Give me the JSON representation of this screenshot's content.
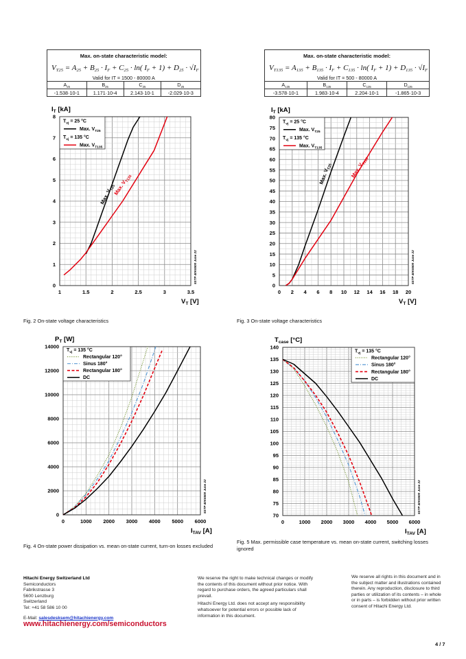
{
  "tables": [
    {
      "title": "Max. on-state characteristic model:",
      "formula": {
        "lhs": "V",
        "lhs_sub": "T25",
        "rhs": "= A",
        "s1": "25",
        "p2": " + B",
        "s2": "25",
        "p3": " · I",
        "s3": "F",
        "p4": " + C",
        "s4": "25",
        "p5": " · ln( I",
        "s5": "F",
        "p6": " + 1) + D",
        "s6": "25",
        "p7": " · √I",
        "s7": "F"
      },
      "valid": "Valid for IT = 1500 - 80000 A",
      "headers": [
        [
          "A",
          "25"
        ],
        [
          "B",
          "25"
        ],
        [
          "C",
          "25"
        ],
        [
          "D",
          "25"
        ]
      ],
      "values": [
        "-1.538·10-1",
        "1.171·10-4",
        "2.143·10-1",
        "-2.029·10-3"
      ]
    },
    {
      "title": "Max. on-state characteristic model:",
      "formula": {
        "lhs": "V",
        "lhs_sub": "T135",
        "rhs": "= A",
        "s1": "135",
        "p2": " + B",
        "s2": "135",
        "p3": " · I",
        "s3": "F",
        "p4": " + C",
        "s4": "135",
        "p5": " · ln( I",
        "s5": "F",
        "p6": " + 1) + D",
        "s6": "135",
        "p7": " · √I",
        "s7": "F"
      },
      "valid": "Valid for IT = 500 - 80000 A",
      "headers": [
        [
          "A",
          "135"
        ],
        [
          "B",
          "135"
        ],
        [
          "C",
          "135"
        ],
        [
          "D",
          "135"
        ]
      ],
      "values": [
        "-3.578·10-1",
        "1.983·10-4",
        "2.204·10-1",
        "-1.865·10-3"
      ]
    }
  ],
  "captions": {
    "fig2": "Fig. 2 On-state voltage characteristics",
    "fig3": "Fig. 3 On-state voltage characteristics",
    "fig4": "Fig. 4 On-state power dissipation vs. mean on-state current, turn-on losses excluded",
    "fig5": "Fig. 5 Max. permissible case temperature vs. mean on-state current, switching losses ignored"
  },
  "chart_data": [
    {
      "type": "line",
      "ylabel": [
        "I",
        "T",
        " [kA]"
      ],
      "xlabel": [
        "V",
        "T",
        " [V]"
      ],
      "xlim": [
        1,
        3.5
      ],
      "ylim": [
        0,
        8
      ],
      "grid": true,
      "legend": "top-left",
      "xticks": [
        "1",
        "1.5",
        "2",
        "2.5",
        "3",
        "3.5"
      ],
      "yticks": [
        "0",
        "1",
        "2",
        "3",
        "4",
        "5",
        "6",
        "7",
        "8"
      ],
      "watermark": "5STP 40K6500 June 22",
      "legend_entries": [
        {
          "label": [
            "T",
            "vj",
            " = 25 °C"
          ]
        },
        {
          "series": 0,
          "label": [
            "Max. V",
            "T25"
          ]
        },
        {
          "label": [
            "T",
            "vj",
            " = 135 °C"
          ]
        },
        {
          "series": 1,
          "label": [
            "Max. V",
            "T135"
          ]
        }
      ],
      "annotations": [
        {
          "series": 0,
          "label": [
            "Max. V",
            "T25"
          ]
        },
        {
          "series": 1,
          "label": [
            "Max. V",
            "T135"
          ]
        }
      ],
      "series": [
        {
          "name": "Max. VT25",
          "color": "#000000",
          "style": "solid",
          "x": [
            1.5,
            1.6,
            1.7,
            1.8,
            1.9,
            2.0,
            2.1,
            2.2,
            2.3,
            2.4,
            2.53
          ],
          "y": [
            1.5,
            2.0,
            2.7,
            3.4,
            4.1,
            4.8,
            5.5,
            6.2,
            6.9,
            7.5,
            8.0
          ]
        },
        {
          "name": "Max. VT135",
          "color": "#e3000f",
          "style": "solid",
          "x": [
            1.08,
            1.2,
            1.3,
            1.4,
            1.5,
            1.6,
            1.8,
            2.0,
            2.2,
            2.4,
            2.6,
            2.8,
            3.05
          ],
          "y": [
            0.5,
            0.75,
            1.0,
            1.25,
            1.55,
            1.9,
            2.6,
            3.3,
            4.0,
            4.8,
            5.6,
            6.4,
            8.0
          ]
        }
      ]
    },
    {
      "type": "line",
      "ylabel": [
        "I",
        "T",
        " [kA]"
      ],
      "xlabel": [
        "V",
        "T",
        " [V]"
      ],
      "xlim": [
        0,
        20
      ],
      "ylim": [
        0,
        80
      ],
      "grid": true,
      "legend": "top-left",
      "xticks": [
        "0",
        "2",
        "4",
        "6",
        "8",
        "10",
        "12",
        "14",
        "16",
        "18",
        "20"
      ],
      "yticks": [
        "0",
        "5",
        "10",
        "15",
        "20",
        "25",
        "30",
        "35",
        "40",
        "45",
        "50",
        "55",
        "60",
        "65",
        "70",
        "75",
        "80"
      ],
      "watermark": "5STP 40K6500 June 22",
      "legend_entries": [
        {
          "label": [
            "T",
            "vj",
            " = 25 °C"
          ]
        },
        {
          "series": 0,
          "label": [
            "Max. V",
            "T25"
          ]
        },
        {
          "label": [
            "T",
            "vj",
            " = 135 °C"
          ]
        },
        {
          "series": 1,
          "label": [
            "Max. V",
            "T135"
          ]
        }
      ],
      "annotations": [
        {
          "series": 0,
          "label": [
            "Max. V",
            "T25"
          ]
        },
        {
          "series": 1,
          "label": [
            "Max. V",
            "T135"
          ]
        }
      ],
      "series": [
        {
          "name": "Max. VT25",
          "color": "#000000",
          "style": "solid",
          "x": [
            1,
            1.5,
            2,
            3,
            4,
            6,
            8,
            10,
            11.1
          ],
          "y": [
            0,
            1,
            3,
            10,
            19,
            36,
            54,
            71,
            80
          ]
        },
        {
          "name": "Max. VT135",
          "color": "#e3000f",
          "style": "solid",
          "x": [
            1,
            1.5,
            2,
            4,
            6,
            8,
            10,
            12,
            14,
            16,
            17.5
          ],
          "y": [
            0,
            1,
            3,
            13,
            22,
            31,
            42,
            53,
            63,
            73,
            80
          ]
        }
      ]
    },
    {
      "type": "line",
      "ylabel": [
        "P",
        "T",
        " [W]"
      ],
      "xlabel": [
        "I",
        "TAV",
        " [A]"
      ],
      "xlim": [
        0,
        6000
      ],
      "ylim": [
        0,
        14000
      ],
      "grid": true,
      "legend": "top-left",
      "xticks": [
        "0",
        "1000",
        "2000",
        "3000",
        "4000",
        "5000",
        "6000"
      ],
      "yticks": [
        "0",
        "2000",
        "4000",
        "6000",
        "8000",
        "10000",
        "12000",
        "14000"
      ],
      "watermark": "5STP 40K6500 June 22",
      "legend_entries": [
        {
          "label": [
            "T",
            "vj",
            " = 135 °C"
          ]
        },
        {
          "series": 0,
          "label": [
            "Rectangular 120°"
          ]
        },
        {
          "series": 1,
          "label": [
            "Sinus 180°"
          ]
        },
        {
          "series": 2,
          "label": [
            "Rectangular 180°"
          ]
        },
        {
          "series": 3,
          "label": [
            "DC"
          ]
        }
      ],
      "series": [
        {
          "name": "Rectangular 120°",
          "color": "#6b8e23",
          "style": "dotted",
          "x": [
            0,
            500,
            1000,
            1500,
            2000,
            2500,
            3000,
            3700
          ],
          "y": [
            0,
            700,
            1800,
            3300,
            5000,
            7200,
            9800,
            14000
          ]
        },
        {
          "name": "Sinus 180°",
          "color": "#5b9bd5",
          "style": "dashdot",
          "x": [
            0,
            500,
            1000,
            1500,
            2000,
            2500,
            3000,
            3500,
            4050
          ],
          "y": [
            0,
            650,
            1700,
            3000,
            4500,
            6400,
            8500,
            10900,
            14000
          ]
        },
        {
          "name": "Rectangular 180°",
          "color": "#e3000f",
          "style": "dashed",
          "x": [
            0,
            500,
            1000,
            1500,
            2000,
            2500,
            3000,
            3500,
            4000,
            4350
          ],
          "y": [
            0,
            600,
            1500,
            2700,
            4200,
            5900,
            7800,
            9900,
            12200,
            13800
          ]
        },
        {
          "name": "DC",
          "color": "#000000",
          "style": "solid",
          "x": [
            0,
            500,
            1000,
            1500,
            2000,
            2500,
            3000,
            3500,
            4000,
            4500,
            5000,
            5550
          ],
          "y": [
            0,
            550,
            1300,
            2200,
            3200,
            4400,
            5700,
            7100,
            8600,
            10200,
            12000,
            14000
          ]
        }
      ]
    },
    {
      "type": "line",
      "ylabel": [
        "T",
        "case",
        " [°C]"
      ],
      "xlabel": [
        "I",
        "TAV",
        " [A]"
      ],
      "xlim": [
        0,
        6000
      ],
      "ylim": [
        70,
        140
      ],
      "grid": true,
      "legend": "top-right",
      "xticks": [
        "0",
        "1000",
        "2000",
        "3000",
        "4000",
        "5000",
        "6000"
      ],
      "yticks": [
        "70",
        "75",
        "80",
        "85",
        "90",
        "95",
        "100",
        "105",
        "110",
        "115",
        "120",
        "125",
        "130",
        "135",
        "140"
      ],
      "watermark": "5STP 40K6500 June 22",
      "legend_entries": [
        {
          "label": [
            "T",
            "vj",
            " = 135 °C"
          ]
        },
        {
          "series": 0,
          "label": [
            "Rectangular 120°"
          ]
        },
        {
          "series": 1,
          "label": [
            "Sinus 180°"
          ]
        },
        {
          "series": 2,
          "label": [
            "Rectangular 180°"
          ]
        },
        {
          "series": 3,
          "label": [
            "DC"
          ]
        }
      ],
      "series": [
        {
          "name": "Rectangular 120°",
          "color": "#6b8e23",
          "style": "dotted",
          "x": [
            0,
            500,
            1000,
            1500,
            2000,
            2500,
            3000,
            3400
          ],
          "y": [
            135,
            131,
            124,
            116,
            107,
            96.5,
            84,
            70
          ]
        },
        {
          "name": "Sinus 180°",
          "color": "#5b9bd5",
          "style": "dashdot",
          "x": [
            0,
            500,
            1000,
            1500,
            2000,
            2500,
            3000,
            3500,
            3750
          ],
          "y": [
            135,
            131.5,
            126,
            119,
            111,
            101.5,
            91,
            78,
            70
          ]
        },
        {
          "name": "Rectangular 180°",
          "color": "#e3000f",
          "style": "dashed",
          "x": [
            0,
            500,
            1000,
            1500,
            2000,
            2500,
            3000,
            3500,
            4050
          ],
          "y": [
            135,
            131.5,
            126,
            120,
            113,
            104.5,
            95,
            84,
            70
          ]
        },
        {
          "name": "DC",
          "color": "#000000",
          "style": "solid",
          "x": [
            0,
            500,
            1000,
            1500,
            2000,
            2500,
            3000,
            3500,
            4000,
            4500,
            5000,
            5450
          ],
          "y": [
            135,
            133,
            129,
            125,
            119.5,
            113.5,
            107,
            100.5,
            93,
            85.5,
            77,
            70
          ]
        }
      ]
    }
  ],
  "footer": {
    "company": "Hitachi Energy Switzerland Ltd",
    "address": [
      "Semiconductors",
      "Fabrikstrasse 3",
      "5600 Lenzburg",
      "Switzerland",
      "Tel: +41 58 586 10 00"
    ],
    "email_label": "E-Mail: ",
    "email": "salesdesksem@hitachienergy.com",
    "url": "www.hitachienergy.com/semiconductors",
    "notice1": "We reserve the right to make technical changes or modify the contents of this document without prior notice. With regard to purchase orders, the agreed particulars shall prevail.",
    "notice2": "Hitachi Energy Ltd. does not accept any responsibility whatsoever for potential errors or possible lack of information in this document.",
    "rights": "We reserve all rights in this document and in the subject matter and illustrations contained therein. Any reproduction, disclosure to third parties or utilization of its contents – in whole or in parts – is forbidden without prior written consent of Hitachi Energy Ltd.",
    "page": "4 / 7"
  }
}
